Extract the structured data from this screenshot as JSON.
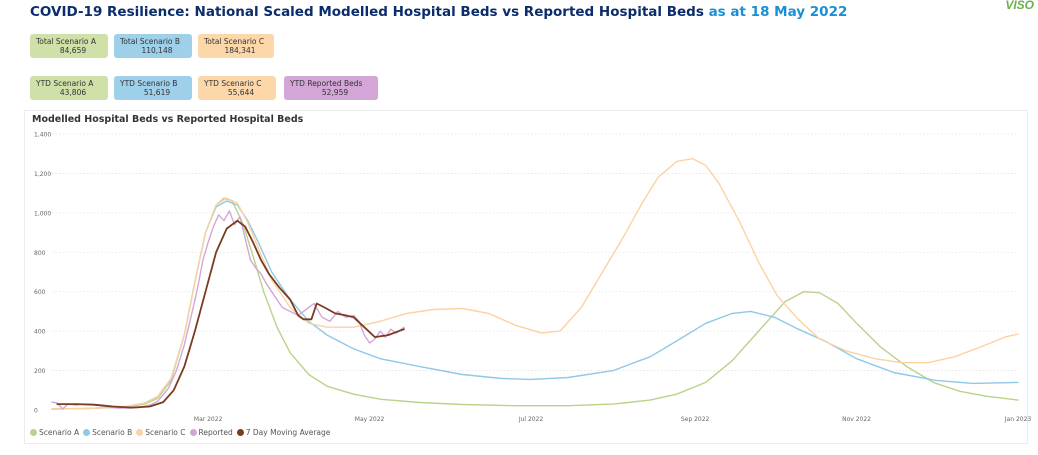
{
  "header": {
    "title": "COVID-19 Resilience: National Scaled Modelled Hospital Beds vs Reported Hospital Beds",
    "date_text": "as at 18 May 2022",
    "logo": "VISO"
  },
  "cards": {
    "total_a": {
      "label": "Total Scenario A",
      "value": "84,659",
      "color": "#cfe0a8"
    },
    "total_b": {
      "label": "Total Scenario B",
      "value": "110,148",
      "color": "#9fd0ea"
    },
    "total_c": {
      "label": "Total Scenario C",
      "value": "184,341",
      "color": "#fbd7a9"
    },
    "ytd_a": {
      "label": "YTD Scenario A",
      "value": "43,806",
      "color": "#cfe0a8"
    },
    "ytd_b": {
      "label": "YTD Scenario B",
      "value": "51,619",
      "color": "#9fd0ea"
    },
    "ytd_c": {
      "label": "YTD Scenario C",
      "value": "55,644",
      "color": "#fbd7a9"
    },
    "ytd_reported": {
      "label": "YTD Reported Beds",
      "value": "52,959",
      "color": "#d4a6d8"
    }
  },
  "chart_data": {
    "type": "line",
    "title": "Modelled Hospital Beds vs Reported Hospital Beds",
    "xlabel": "",
    "ylabel": "",
    "ylim": [
      0,
      1400
    ],
    "yticks": [
      0,
      200,
      400,
      600,
      800,
      1000,
      1200,
      1400
    ],
    "ytick_labels": [
      "0",
      "200",
      "400",
      "600",
      "800",
      "1,000",
      "1,200",
      "1,400"
    ],
    "xlim": [
      "2022-01-01",
      "2023-01-01"
    ],
    "xticks": [
      "2022-03-01",
      "2022-05-01",
      "2022-07-01",
      "2022-09-01",
      "2022-11-01",
      "2023-01-01"
    ],
    "xtick_labels": [
      "Mar 2022",
      "May 2022",
      "Jul 2022",
      "Sep 2022",
      "Nov 2022",
      "Jan 2023"
    ],
    "grid": "horizontal-dotted",
    "legend_position": "bottom-left",
    "series": [
      {
        "name": "Scenario A",
        "color": "#b9d38a",
        "width": 1.4,
        "points": [
          [
            "2022-01-01",
            5
          ],
          [
            "2022-01-15",
            8
          ],
          [
            "2022-01-29",
            15
          ],
          [
            "2022-02-05",
            30
          ],
          [
            "2022-02-10",
            60
          ],
          [
            "2022-02-15",
            150
          ],
          [
            "2022-02-20",
            380
          ],
          [
            "2022-02-24",
            650
          ],
          [
            "2022-02-28",
            900
          ],
          [
            "2022-03-04",
            1040
          ],
          [
            "2022-03-07",
            1075
          ],
          [
            "2022-03-10",
            1060
          ],
          [
            "2022-03-14",
            950
          ],
          [
            "2022-03-18",
            780
          ],
          [
            "2022-03-22",
            600
          ],
          [
            "2022-03-27",
            420
          ],
          [
            "2022-04-01",
            290
          ],
          [
            "2022-04-08",
            180
          ],
          [
            "2022-04-15",
            120
          ],
          [
            "2022-04-25",
            80
          ],
          [
            "2022-05-05",
            55
          ],
          [
            "2022-05-20",
            38
          ],
          [
            "2022-06-05",
            28
          ],
          [
            "2022-06-25",
            22
          ],
          [
            "2022-07-15",
            22
          ],
          [
            "2022-08-01",
            30
          ],
          [
            "2022-08-15",
            50
          ],
          [
            "2022-08-25",
            80
          ],
          [
            "2022-09-05",
            140
          ],
          [
            "2022-09-15",
            250
          ],
          [
            "2022-09-25",
            400
          ],
          [
            "2022-10-05",
            550
          ],
          [
            "2022-10-12",
            600
          ],
          [
            "2022-10-18",
            595
          ],
          [
            "2022-10-25",
            540
          ],
          [
            "2022-11-01",
            440
          ],
          [
            "2022-11-10",
            320
          ],
          [
            "2022-11-20",
            220
          ],
          [
            "2022-11-30",
            140
          ],
          [
            "2022-12-10",
            95
          ],
          [
            "2022-12-20",
            70
          ],
          [
            "2023-01-01",
            50
          ]
        ]
      },
      {
        "name": "Scenario B",
        "color": "#8ec9e6",
        "width": 1.4,
        "points": [
          [
            "2022-01-01",
            5
          ],
          [
            "2022-01-15",
            8
          ],
          [
            "2022-01-29",
            18
          ],
          [
            "2022-02-05",
            35
          ],
          [
            "2022-02-10",
            70
          ],
          [
            "2022-02-15",
            160
          ],
          [
            "2022-02-20",
            380
          ],
          [
            "2022-02-24",
            650
          ],
          [
            "2022-02-28",
            900
          ],
          [
            "2022-03-04",
            1030
          ],
          [
            "2022-03-08",
            1060
          ],
          [
            "2022-03-12",
            1040
          ],
          [
            "2022-03-16",
            960
          ],
          [
            "2022-03-20",
            850
          ],
          [
            "2022-03-25",
            700
          ],
          [
            "2022-04-01",
            560
          ],
          [
            "2022-04-08",
            450
          ],
          [
            "2022-04-15",
            380
          ],
          [
            "2022-04-25",
            310
          ],
          [
            "2022-05-05",
            260
          ],
          [
            "2022-05-20",
            220
          ],
          [
            "2022-06-05",
            180
          ],
          [
            "2022-06-20",
            160
          ],
          [
            "2022-07-01",
            155
          ],
          [
            "2022-07-15",
            165
          ],
          [
            "2022-08-01",
            200
          ],
          [
            "2022-08-15",
            270
          ],
          [
            "2022-08-25",
            350
          ],
          [
            "2022-09-05",
            440
          ],
          [
            "2022-09-15",
            490
          ],
          [
            "2022-09-22",
            500
          ],
          [
            "2022-10-01",
            470
          ],
          [
            "2022-10-10",
            410
          ],
          [
            "2022-10-20",
            350
          ],
          [
            "2022-11-01",
            260
          ],
          [
            "2022-11-15",
            190
          ],
          [
            "2022-12-01",
            150
          ],
          [
            "2022-12-15",
            135
          ],
          [
            "2023-01-01",
            140
          ]
        ]
      },
      {
        "name": "Scenario C",
        "color": "#fbd3a0",
        "width": 1.4,
        "points": [
          [
            "2022-01-01",
            5
          ],
          [
            "2022-01-15",
            8
          ],
          [
            "2022-01-29",
            18
          ],
          [
            "2022-02-05",
            35
          ],
          [
            "2022-02-10",
            70
          ],
          [
            "2022-02-15",
            160
          ],
          [
            "2022-02-20",
            380
          ],
          [
            "2022-02-24",
            650
          ],
          [
            "2022-02-28",
            900
          ],
          [
            "2022-03-04",
            1040
          ],
          [
            "2022-03-08",
            1075
          ],
          [
            "2022-03-12",
            1050
          ],
          [
            "2022-03-16",
            950
          ],
          [
            "2022-03-20",
            820
          ],
          [
            "2022-03-25",
            660
          ],
          [
            "2022-04-01",
            520
          ],
          [
            "2022-04-08",
            440
          ],
          [
            "2022-04-15",
            420
          ],
          [
            "2022-04-25",
            420
          ],
          [
            "2022-05-05",
            450
          ],
          [
            "2022-05-15",
            490
          ],
          [
            "2022-05-25",
            510
          ],
          [
            "2022-06-05",
            515
          ],
          [
            "2022-06-15",
            490
          ],
          [
            "2022-06-25",
            430
          ],
          [
            "2022-07-05",
            390
          ],
          [
            "2022-07-12",
            400
          ],
          [
            "2022-07-20",
            520
          ],
          [
            "2022-07-28",
            700
          ],
          [
            "2022-08-05",
            880
          ],
          [
            "2022-08-12",
            1050
          ],
          [
            "2022-08-18",
            1180
          ],
          [
            "2022-08-25",
            1260
          ],
          [
            "2022-08-31",
            1275
          ],
          [
            "2022-09-05",
            1240
          ],
          [
            "2022-09-10",
            1150
          ],
          [
            "2022-09-18",
            950
          ],
          [
            "2022-09-25",
            750
          ],
          [
            "2022-10-02",
            580
          ],
          [
            "2022-10-10",
            460
          ],
          [
            "2022-10-18",
            360
          ],
          [
            "2022-10-28",
            300
          ],
          [
            "2022-11-08",
            260
          ],
          [
            "2022-11-18",
            240
          ],
          [
            "2022-11-28",
            240
          ],
          [
            "2022-12-08",
            270
          ],
          [
            "2022-12-18",
            320
          ],
          [
            "2022-12-27",
            370
          ],
          [
            "2023-01-01",
            385
          ]
        ]
      },
      {
        "name": "Reported",
        "color": "#d4a6d8",
        "width": 1.4,
        "points": [
          [
            "2022-01-01",
            40
          ],
          [
            "2022-01-03",
            35
          ],
          [
            "2022-01-05",
            5
          ],
          [
            "2022-01-07",
            30
          ],
          [
            "2022-01-10",
            25
          ],
          [
            "2022-01-13",
            30
          ],
          [
            "2022-01-16",
            28
          ],
          [
            "2022-01-19",
            22
          ],
          [
            "2022-01-22",
            15
          ],
          [
            "2022-01-26",
            10
          ],
          [
            "2022-01-30",
            10
          ],
          [
            "2022-02-03",
            12
          ],
          [
            "2022-02-07",
            25
          ],
          [
            "2022-02-10",
            45
          ],
          [
            "2022-02-14",
            110
          ],
          [
            "2022-02-17",
            200
          ],
          [
            "2022-02-20",
            330
          ],
          [
            "2022-02-23",
            500
          ],
          [
            "2022-02-25",
            620
          ],
          [
            "2022-02-27",
            760
          ],
          [
            "2022-03-01",
            850
          ],
          [
            "2022-03-03",
            930
          ],
          [
            "2022-03-05",
            990
          ],
          [
            "2022-03-07",
            960
          ],
          [
            "2022-03-09",
            1010
          ],
          [
            "2022-03-11",
            940
          ],
          [
            "2022-03-13",
            980
          ],
          [
            "2022-03-15",
            870
          ],
          [
            "2022-03-17",
            760
          ],
          [
            "2022-03-19",
            720
          ],
          [
            "2022-03-21",
            690
          ],
          [
            "2022-03-23",
            640
          ],
          [
            "2022-03-25",
            600
          ],
          [
            "2022-03-27",
            560
          ],
          [
            "2022-03-29",
            520
          ],
          [
            "2022-04-01",
            500
          ],
          [
            "2022-04-04",
            480
          ],
          [
            "2022-04-07",
            510
          ],
          [
            "2022-04-10",
            540
          ],
          [
            "2022-04-13",
            470
          ],
          [
            "2022-04-16",
            450
          ],
          [
            "2022-04-19",
            500
          ],
          [
            "2022-04-22",
            470
          ],
          [
            "2022-04-25",
            480
          ],
          [
            "2022-04-27",
            450
          ],
          [
            "2022-04-29",
            380
          ],
          [
            "2022-05-01",
            340
          ],
          [
            "2022-05-03",
            360
          ],
          [
            "2022-05-05",
            400
          ],
          [
            "2022-05-07",
            370
          ],
          [
            "2022-05-09",
            410
          ],
          [
            "2022-05-11",
            390
          ],
          [
            "2022-05-14",
            420
          ]
        ]
      },
      {
        "name": "7 Day Moving Average",
        "color": "#7a3b1e",
        "width": 1.8,
        "points": [
          [
            "2022-01-03",
            30
          ],
          [
            "2022-01-10",
            30
          ],
          [
            "2022-01-17",
            27
          ],
          [
            "2022-01-24",
            18
          ],
          [
            "2022-01-31",
            12
          ],
          [
            "2022-02-07",
            18
          ],
          [
            "2022-02-12",
            40
          ],
          [
            "2022-02-16",
            100
          ],
          [
            "2022-02-20",
            220
          ],
          [
            "2022-02-24",
            400
          ],
          [
            "2022-02-28",
            600
          ],
          [
            "2022-03-04",
            800
          ],
          [
            "2022-03-08",
            920
          ],
          [
            "2022-03-12",
            960
          ],
          [
            "2022-03-15",
            930
          ],
          [
            "2022-03-18",
            850
          ],
          [
            "2022-03-21",
            760
          ],
          [
            "2022-03-24",
            690
          ],
          [
            "2022-03-28",
            620
          ],
          [
            "2022-04-01",
            560
          ],
          [
            "2022-04-04",
            480
          ],
          [
            "2022-04-06",
            460
          ],
          [
            "2022-04-09",
            460
          ],
          [
            "2022-04-11",
            540
          ],
          [
            "2022-04-14",
            520
          ],
          [
            "2022-04-18",
            490
          ],
          [
            "2022-04-22",
            480
          ],
          [
            "2022-04-25",
            470
          ],
          [
            "2022-04-29",
            420
          ],
          [
            "2022-05-03",
            370
          ],
          [
            "2022-05-08",
            380
          ],
          [
            "2022-05-14",
            410
          ]
        ]
      }
    ]
  }
}
